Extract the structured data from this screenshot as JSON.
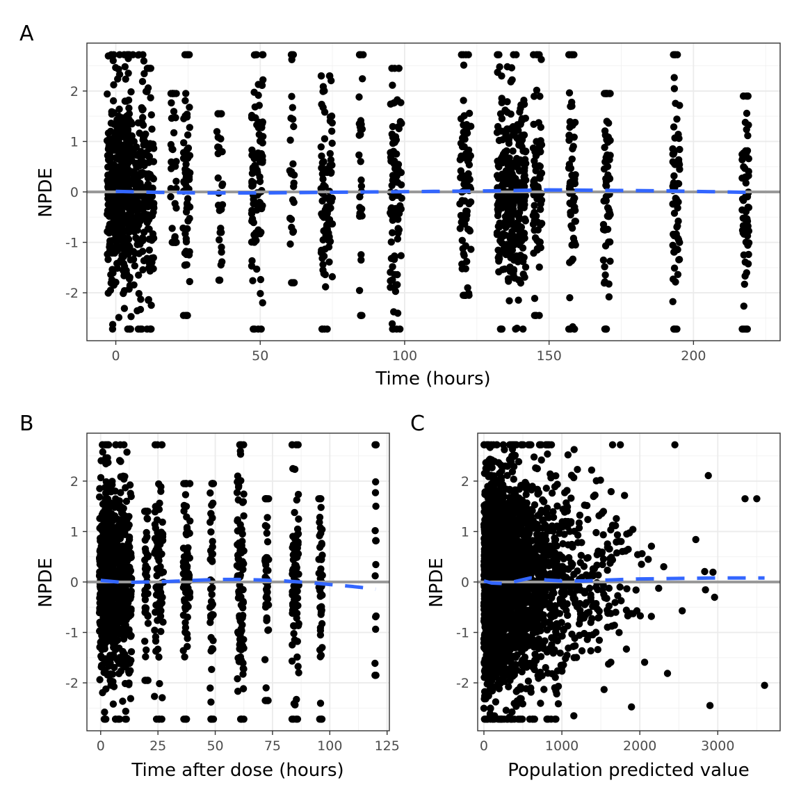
{
  "chart_data": [
    {
      "panel": "A",
      "type": "scatter",
      "xlabel": "Time (hours)",
      "ylabel": "NPDE",
      "xlim": [
        -10,
        230
      ],
      "ylim": [
        -2.95,
        2.95
      ],
      "xticks": [
        0,
        50,
        100,
        150,
        200
      ],
      "yticks": [
        -2,
        -1,
        0,
        1,
        2
      ],
      "grid": true,
      "reference_line_y": 0,
      "point_color": "#000000",
      "reference_color": "#999999",
      "smooth_color": "#3366ff",
      "columns": [
        {
          "x": 1,
          "jitter": 4,
          "n": 380,
          "min": -2.72,
          "max": 2.72
        },
        {
          "x": 7,
          "jitter": 3.5,
          "n": 200,
          "min": -2.72,
          "max": 2.72
        },
        {
          "x": 12,
          "jitter": 1.2,
          "n": 70,
          "min": -2.72,
          "max": 2.45
        },
        {
          "x": 20,
          "jitter": 1,
          "n": 30,
          "min": -1.0,
          "max": 1.95
        },
        {
          "x": 24.5,
          "jitter": 1.2,
          "n": 60,
          "min": -2.45,
          "max": 2.72
        },
        {
          "x": 36,
          "jitter": 1,
          "n": 25,
          "min": -1.75,
          "max": 1.55
        },
        {
          "x": 49,
          "jitter": 2,
          "n": 90,
          "min": -2.72,
          "max": 2.72
        },
        {
          "x": 61,
          "jitter": 0.8,
          "n": 25,
          "min": -1.8,
          "max": 2.72
        },
        {
          "x": 73,
          "jitter": 2,
          "n": 90,
          "min": -2.72,
          "max": 2.3
        },
        {
          "x": 85,
          "jitter": 0.8,
          "n": 25,
          "min": -2.45,
          "max": 2.72
        },
        {
          "x": 97,
          "jitter": 2,
          "n": 100,
          "min": -2.72,
          "max": 2.45
        },
        {
          "x": 121,
          "jitter": 2,
          "n": 80,
          "min": -2.05,
          "max": 2.72
        },
        {
          "x": 137,
          "jitter": 5,
          "n": 320,
          "min": -2.72,
          "max": 2.72
        },
        {
          "x": 146,
          "jitter": 1.5,
          "n": 70,
          "min": -2.45,
          "max": 2.72
        },
        {
          "x": 158,
          "jitter": 1.2,
          "n": 60,
          "min": -2.72,
          "max": 2.72
        },
        {
          "x": 170,
          "jitter": 1.2,
          "n": 60,
          "min": -2.72,
          "max": 1.95
        },
        {
          "x": 194,
          "jitter": 1.2,
          "n": 60,
          "min": -2.72,
          "max": 2.72
        },
        {
          "x": 218,
          "jitter": 1.2,
          "n": 60,
          "min": -2.72,
          "max": 1.9
        }
      ],
      "smooth": {
        "x": [
          0,
          15,
          30,
          50,
          70,
          90,
          110,
          130,
          150,
          170,
          190,
          210,
          220
        ],
        "y": [
          0.01,
          -0.01,
          -0.02,
          -0.02,
          -0.01,
          0.0,
          0.01,
          0.02,
          0.04,
          0.03,
          0.02,
          0.0,
          -0.01
        ]
      }
    },
    {
      "panel": "B",
      "type": "scatter",
      "xlabel": "Time after dose (hours)",
      "ylabel": "NPDE",
      "xlim": [
        -6,
        126
      ],
      "ylim": [
        -2.95,
        2.95
      ],
      "xticks": [
        0,
        25,
        50,
        75,
        100,
        125
      ],
      "yticks": [
        -2,
        -1,
        0,
        1,
        2
      ],
      "grid": true,
      "reference_line_y": 0,
      "point_color": "#000000",
      "reference_color": "#999999",
      "smooth_color": "#3366ff",
      "columns": [
        {
          "x": 3,
          "jitter": 3.5,
          "n": 450,
          "min": -2.72,
          "max": 2.72
        },
        {
          "x": 10,
          "jitter": 3.5,
          "n": 280,
          "min": -2.72,
          "max": 2.72
        },
        {
          "x": 20,
          "jitter": 0.8,
          "n": 40,
          "min": -1.95,
          "max": 1.4
        },
        {
          "x": 25.5,
          "jitter": 2,
          "n": 80,
          "min": -2.72,
          "max": 2.72
        },
        {
          "x": 37.5,
          "jitter": 1.5,
          "n": 70,
          "min": -2.72,
          "max": 1.95
        },
        {
          "x": 48.5,
          "jitter": 0.8,
          "n": 40,
          "min": -2.72,
          "max": 1.95
        },
        {
          "x": 61,
          "jitter": 1.5,
          "n": 90,
          "min": -2.72,
          "max": 2.72
        },
        {
          "x": 72.5,
          "jitter": 0.8,
          "n": 40,
          "min": -2.35,
          "max": 1.65
        },
        {
          "x": 85,
          "jitter": 1.5,
          "n": 80,
          "min": -2.72,
          "max": 2.72
        },
        {
          "x": 96,
          "jitter": 0.8,
          "n": 40,
          "min": -2.72,
          "max": 1.65
        },
        {
          "x": 120,
          "jitter": 0.3,
          "n": 14,
          "min": -1.85,
          "max": 2.72
        }
      ],
      "smooth": {
        "x": [
          0,
          10,
          20,
          30,
          40,
          50,
          60,
          70,
          80,
          90,
          100,
          110,
          120
        ],
        "y": [
          0.03,
          -0.01,
          0.0,
          0.01,
          0.03,
          0.05,
          0.05,
          0.04,
          0.02,
          -0.01,
          -0.05,
          -0.09,
          -0.14
        ]
      }
    },
    {
      "panel": "C",
      "type": "scatter",
      "xlabel": "Population predicted value",
      "ylabel": "NPDE",
      "xlim": [
        -80,
        3800
      ],
      "ylim": [
        -2.95,
        2.95
      ],
      "xticks": [
        0,
        1000,
        2000,
        3000
      ],
      "yticks": [
        -2,
        -1,
        0,
        1,
        2
      ],
      "grid": true,
      "reference_line_y": 0,
      "point_color": "#000000",
      "reference_color": "#999999",
      "smooth_color": "#3366ff",
      "smooth": {
        "x": [
          0,
          100,
          250,
          400,
          600,
          800,
          1000,
          1300,
          1600,
          2000,
          2500,
          3000,
          3600
        ],
        "y": [
          0.02,
          -0.02,
          -0.03,
          0.01,
          0.08,
          0.04,
          0.02,
          0.02,
          0.04,
          0.06,
          0.07,
          0.08,
          0.08
        ]
      }
    }
  ],
  "panels": {
    "A": {
      "letter": "A"
    },
    "B": {
      "letter": "B"
    },
    "C": {
      "letter": "C"
    }
  }
}
